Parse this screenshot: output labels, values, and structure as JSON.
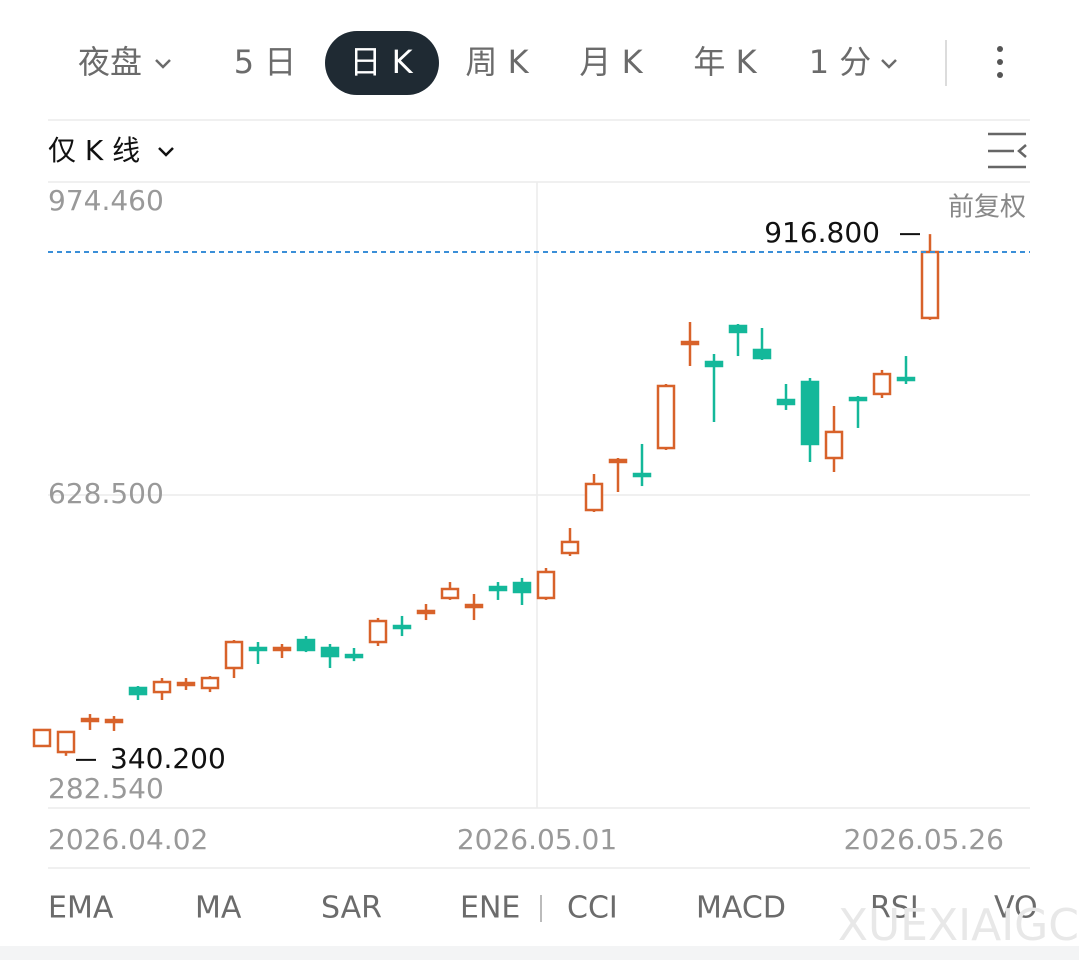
{
  "tabs": [
    "夜盘",
    "5 日",
    "日 K",
    "周 K",
    "月 K",
    "年 K",
    "1 分"
  ],
  "active_tab": 2,
  "kline_mode": "仅 K 线",
  "adjust_mode": "前复权",
  "indicators": [
    "EMA",
    "MA",
    "SAR",
    "ENE",
    "CCI",
    "MACD",
    "RSI",
    "VO"
  ],
  "watermark": "XUEXIAIGC",
  "chart_data": {
    "type": "candlestick",
    "ylim": [
      282.54,
      974.46
    ],
    "yticks": [
      {
        "value": 974.46,
        "label": "974.460"
      },
      {
        "value": 628.5,
        "label": "628.500"
      },
      {
        "value": 282.54,
        "label": "282.540"
      }
    ],
    "grid": true,
    "date_labels": [
      "2026.04.02",
      "2026.05.01",
      "2026.05.26"
    ],
    "up_color": "#d8622a",
    "down_color": "#14b89a",
    "price_line_color": "#3a8fd8",
    "max_label": "916.800",
    "min_label": "340.200",
    "open": [
      351.1,
      344.4,
      379.8,
      378.7,
      415.2,
      410.7,
      418.5,
      415.2,
      437.3,
      459.4,
      457.2,
      468.2,
      459.4,
      451.6,
      466.0,
      483.7,
      499.2,
      514.7,
      505.8,
      526.8,
      531.2,
      514.7,
      564.4,
      611.9,
      666.1,
      651.7,
      680.4,
      796.5,
      775.5,
      815.3,
      788.8,
      733.5,
      753.4,
      669.4,
      735.7,
      740.2,
      757.8,
      824.2
    ],
    "high": [
      368.8,
      366.6,
      386.4,
      384.2,
      417.4,
      426.2,
      426.2,
      428.4,
      468.2,
      466.0,
      463.8,
      472.6,
      463.8,
      459.4,
      492.6,
      494.8,
      508.0,
      532.3,
      519.1,
      532.3,
      536.8,
      547.8,
      592.0,
      651.7,
      669.4,
      684.9,
      751.2,
      819.7,
      784.4,
      817.5,
      813.1,
      751.2,
      757.8,
      726.9,
      737.9,
      766.7,
      782.1,
      916.8
    ],
    "low": [
      351.1,
      340.2,
      368.8,
      367.7,
      401.9,
      401.9,
      413.0,
      410.7,
      426.2,
      441.7,
      448.3,
      454.9,
      437.3,
      444.9,
      461.6,
      472.6,
      490.3,
      512.5,
      490.3,
      512.5,
      506.9,
      512.5,
      561.1,
      609.7,
      631.8,
      638.4,
      678.2,
      771.1,
      709.2,
      782.1,
      777.7,
      722.5,
      665.0,
      653.9,
      702.6,
      735.7,
      751.2,
      822.0
    ],
    "close": [
      368.8,
      366.6,
      380.9,
      379.8,
      408.5,
      421.8,
      420.7,
      426.2,
      466.0,
      457.2,
      459.4,
      457.2,
      450.5,
      450.5,
      489.2,
      481.5,
      500.3,
      524.6,
      506.9,
      523.5,
      521.3,
      543.4,
      576.6,
      640.7,
      667.2,
      649.5,
      749.0,
      797.6,
      771.1,
      808.7,
      779.9,
      729.1,
      684.9,
      698.2,
      733.5,
      762.2,
      755.6,
      897.1
    ]
  }
}
